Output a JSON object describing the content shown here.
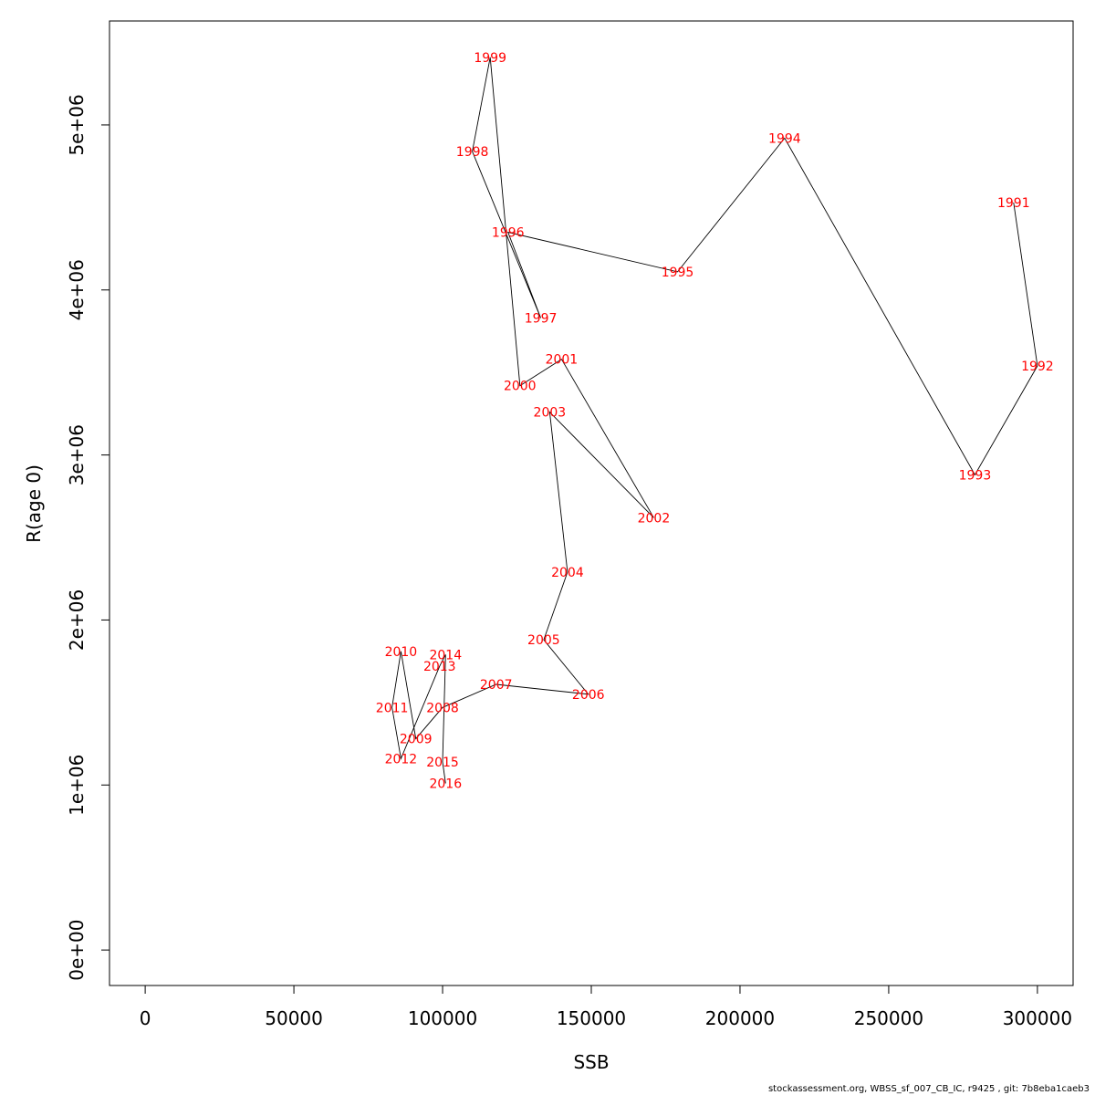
{
  "chart_data": {
    "type": "line",
    "xlabel": "SSB",
    "ylabel": "R(age 0)",
    "xlim": [
      -12000,
      312000
    ],
    "ylim": [
      -215000,
      5630000
    ],
    "x_ticks": [
      0,
      50000,
      100000,
      150000,
      200000,
      250000,
      300000
    ],
    "x_tick_labels": [
      "0",
      "50000",
      "100000",
      "150000",
      "200000",
      "250000",
      "300000"
    ],
    "y_ticks": [
      0,
      1000000,
      2000000,
      3000000,
      4000000,
      5000000
    ],
    "y_tick_labels": [
      "0e+00",
      "1e+06",
      "2e+06",
      "3e+06",
      "4e+06",
      "5e+06"
    ],
    "grid": false,
    "label_color": "#ff0000",
    "line_color": "#000000",
    "points": [
      {
        "year": "1991",
        "ssb": 292000,
        "r": 4530000
      },
      {
        "year": "1992",
        "ssb": 300000,
        "r": 3540000
      },
      {
        "year": "1993",
        "ssb": 279000,
        "r": 2880000
      },
      {
        "year": "1994",
        "ssb": 215000,
        "r": 4920000
      },
      {
        "year": "1995",
        "ssb": 179000,
        "r": 4110000
      },
      {
        "year": "1996",
        "ssb": 122000,
        "r": 4350000
      },
      {
        "year": "1997",
        "ssb": 133000,
        "r": 3830000
      },
      {
        "year": "1998",
        "ssb": 110000,
        "r": 4840000
      },
      {
        "year": "1999",
        "ssb": 116000,
        "r": 5410000
      },
      {
        "year": "2000",
        "ssb": 126000,
        "r": 3420000
      },
      {
        "year": "2001",
        "ssb": 140000,
        "r": 3580000
      },
      {
        "year": "2002",
        "ssb": 171000,
        "r": 2620000
      },
      {
        "year": "2003",
        "ssb": 136000,
        "r": 3260000
      },
      {
        "year": "2004",
        "ssb": 142000,
        "r": 2290000
      },
      {
        "year": "2005",
        "ssb": 134000,
        "r": 1880000
      },
      {
        "year": "2006",
        "ssb": 149000,
        "r": 1550000
      },
      {
        "year": "2007",
        "ssb": 118000,
        "r": 1610000
      },
      {
        "year": "2008",
        "ssb": 100000,
        "r": 1470000
      },
      {
        "year": "2009",
        "ssb": 91000,
        "r": 1280000
      },
      {
        "year": "2010",
        "ssb": 86000,
        "r": 1810000
      },
      {
        "year": "2011",
        "ssb": 83000,
        "r": 1470000
      },
      {
        "year": "2012",
        "ssb": 86000,
        "r": 1160000
      },
      {
        "year": "2013",
        "ssb": 99000,
        "r": 1720000
      },
      {
        "year": "2014",
        "ssb": 101000,
        "r": 1790000
      },
      {
        "year": "2015",
        "ssb": 100000,
        "r": 1140000
      },
      {
        "year": "2016",
        "ssb": 101000,
        "r": 1010000
      }
    ]
  },
  "footer": {
    "text": "stockassessment.org, WBSS_sf_007_CB_IC, r9425 , git: 7b8eba1caeb3"
  }
}
